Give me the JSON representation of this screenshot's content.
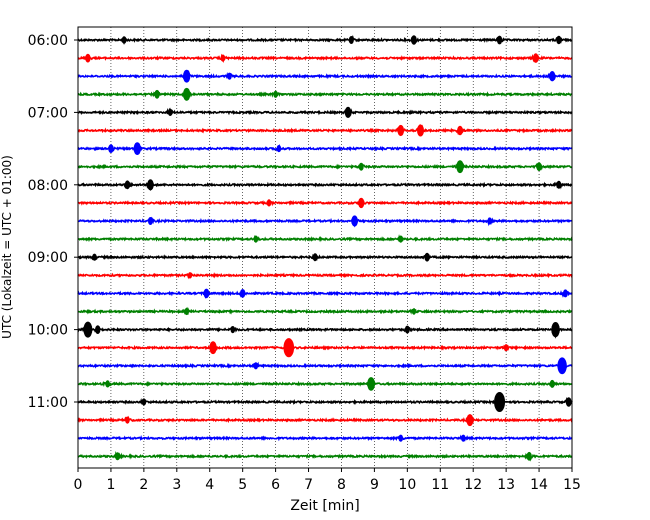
{
  "chart_data": {
    "type": "line",
    "title": "",
    "xlabel": "Zeit  [min]",
    "ylabel": "UTC (Lokalzeit = UTC + 01:00)",
    "xlim": [
      0,
      15
    ],
    "x_ticks": [
      0,
      1,
      2,
      3,
      4,
      5,
      6,
      7,
      8,
      9,
      10,
      11,
      12,
      13,
      14,
      15
    ],
    "x_tick_labels": [
      "0",
      "1",
      "2",
      "3",
      "4",
      "5",
      "6",
      "7",
      "8",
      "9",
      "10",
      "11",
      "12",
      "13",
      "14",
      "15"
    ],
    "x_grid": "dotted vertical lines at each minute",
    "y_tick_labels": [
      "06:00",
      "07:00",
      "08:00",
      "09:00",
      "10:00",
      "11:00"
    ],
    "row_interval_minutes": 15,
    "row_start_time": "06:00",
    "colors": [
      "#000000",
      "#ff0000",
      "#0000ff",
      "#008000"
    ],
    "series": [
      {
        "time": "06:00",
        "color": "#000000",
        "events": [
          {
            "x": 1.4,
            "amp": 0.22
          },
          {
            "x": 8.3,
            "amp": 0.25
          },
          {
            "x": 10.2,
            "amp": 0.35
          },
          {
            "x": 12.8,
            "amp": 0.3
          },
          {
            "x": 14.6,
            "amp": 0.28
          }
        ]
      },
      {
        "time": "06:15",
        "color": "#ff0000",
        "events": [
          {
            "x": 0.3,
            "amp": 0.3
          },
          {
            "x": 4.4,
            "amp": 0.2
          },
          {
            "x": 13.9,
            "amp": 0.35
          }
        ]
      },
      {
        "time": "06:30",
        "color": "#0000ff",
        "events": [
          {
            "x": 3.3,
            "amp": 0.55
          },
          {
            "x": 4.6,
            "amp": 0.2
          },
          {
            "x": 14.4,
            "amp": 0.4
          }
        ]
      },
      {
        "time": "06:45",
        "color": "#008000",
        "events": [
          {
            "x": 2.4,
            "amp": 0.3
          },
          {
            "x": 3.3,
            "amp": 0.55
          },
          {
            "x": 6.0,
            "amp": 0.2
          }
        ]
      },
      {
        "time": "07:00",
        "color": "#000000",
        "events": [
          {
            "x": 2.8,
            "amp": 0.2
          },
          {
            "x": 8.2,
            "amp": 0.45
          }
        ]
      },
      {
        "time": "07:15",
        "color": "#ff0000",
        "events": [
          {
            "x": 9.8,
            "amp": 0.45
          },
          {
            "x": 10.4,
            "amp": 0.5
          },
          {
            "x": 11.6,
            "amp": 0.35
          }
        ]
      },
      {
        "time": "07:30",
        "color": "#0000ff",
        "events": [
          {
            "x": 1.0,
            "amp": 0.3
          },
          {
            "x": 1.8,
            "amp": 0.55
          },
          {
            "x": 6.1,
            "amp": 0.2
          }
        ]
      },
      {
        "time": "07:45",
        "color": "#008000",
        "events": [
          {
            "x": 8.6,
            "amp": 0.25
          },
          {
            "x": 11.6,
            "amp": 0.55
          },
          {
            "x": 14.0,
            "amp": 0.3
          }
        ]
      },
      {
        "time": "08:00",
        "color": "#000000",
        "events": [
          {
            "x": 1.5,
            "amp": 0.3
          },
          {
            "x": 2.2,
            "amp": 0.45
          },
          {
            "x": 14.6,
            "amp": 0.25
          }
        ]
      },
      {
        "time": "08:15",
        "color": "#ff0000",
        "events": [
          {
            "x": 5.8,
            "amp": 0.2
          },
          {
            "x": 8.6,
            "amp": 0.4
          }
        ]
      },
      {
        "time": "08:30",
        "color": "#0000ff",
        "events": [
          {
            "x": 2.2,
            "amp": 0.25
          },
          {
            "x": 8.4,
            "amp": 0.45
          },
          {
            "x": 12.5,
            "amp": 0.2
          }
        ]
      },
      {
        "time": "08:45",
        "color": "#008000",
        "events": [
          {
            "x": 5.4,
            "amp": 0.2
          },
          {
            "x": 9.8,
            "amp": 0.2
          }
        ]
      },
      {
        "time": "09:00",
        "color": "#000000",
        "events": [
          {
            "x": 0.5,
            "amp": 0.2
          },
          {
            "x": 7.2,
            "amp": 0.25
          },
          {
            "x": 10.6,
            "amp": 0.3
          }
        ]
      },
      {
        "time": "09:15",
        "color": "#ff0000",
        "events": [
          {
            "x": 3.4,
            "amp": 0.15
          }
        ]
      },
      {
        "time": "09:30",
        "color": "#0000ff",
        "events": [
          {
            "x": 3.9,
            "amp": 0.35
          },
          {
            "x": 5.0,
            "amp": 0.3
          },
          {
            "x": 14.8,
            "amp": 0.25
          }
        ]
      },
      {
        "time": "09:45",
        "color": "#008000",
        "events": [
          {
            "x": 3.3,
            "amp": 0.2
          },
          {
            "x": 10.2,
            "amp": 0.15
          }
        ]
      },
      {
        "time": "10:00",
        "color": "#000000",
        "events": [
          {
            "x": 0.3,
            "amp": 0.75
          },
          {
            "x": 0.6,
            "amp": 0.3
          },
          {
            "x": 4.7,
            "amp": 0.2
          },
          {
            "x": 10.0,
            "amp": 0.25
          },
          {
            "x": 14.5,
            "amp": 0.7
          }
        ]
      },
      {
        "time": "10:15",
        "color": "#ff0000",
        "events": [
          {
            "x": 4.1,
            "amp": 0.55
          },
          {
            "x": 6.4,
            "amp": 0.95
          },
          {
            "x": 13.0,
            "amp": 0.2
          }
        ]
      },
      {
        "time": "10:30",
        "color": "#0000ff",
        "events": [
          {
            "x": 5.4,
            "amp": 0.2
          },
          {
            "x": 14.7,
            "amp": 0.8
          }
        ]
      },
      {
        "time": "10:45",
        "color": "#008000",
        "events": [
          {
            "x": 0.9,
            "amp": 0.2
          },
          {
            "x": 8.9,
            "amp": 0.6
          },
          {
            "x": 14.4,
            "amp": 0.25
          }
        ]
      },
      {
        "time": "11:00",
        "color": "#000000",
        "events": [
          {
            "x": 2.0,
            "amp": 0.2
          },
          {
            "x": 12.8,
            "amp": 1.0
          },
          {
            "x": 14.9,
            "amp": 0.35
          }
        ]
      },
      {
        "time": "11:15",
        "color": "#ff0000",
        "events": [
          {
            "x": 1.5,
            "amp": 0.2
          },
          {
            "x": 11.9,
            "amp": 0.5
          }
        ]
      },
      {
        "time": "11:30",
        "color": "#0000ff",
        "events": [
          {
            "x": 9.8,
            "amp": 0.2
          },
          {
            "x": 11.7,
            "amp": 0.2
          }
        ]
      },
      {
        "time": "11:45",
        "color": "#008000",
        "events": [
          {
            "x": 1.2,
            "amp": 0.25
          },
          {
            "x": 13.7,
            "amp": 0.3
          }
        ]
      }
    ]
  }
}
